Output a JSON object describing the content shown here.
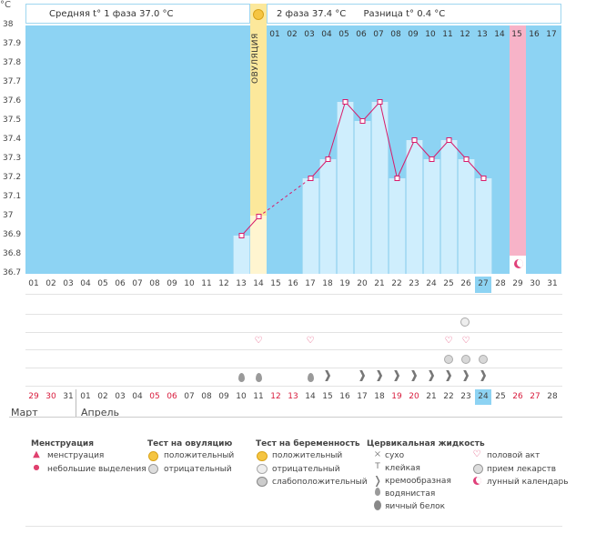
{
  "chart_data": {
    "type": "bar-line",
    "y_unit": "°C",
    "ylim": [
      36.7,
      38.0
    ],
    "y_ticks": [
      "38",
      "37.9",
      "37.8",
      "37.7",
      "37.6",
      "37.5",
      "37.4",
      "37.3",
      "37.2",
      "37.1",
      "37",
      "36.9",
      "36.8",
      "36.7"
    ],
    "header": {
      "phase1": "Средняя t° 1 фаза 37.0 °C",
      "phase2": "2 фаза 37.4 °C",
      "difference": "Разница t° 0.4 °C"
    },
    "ovulation_label": "ОВУЛЯЦИЯ",
    "cycle_days_top": [
      "01",
      "02",
      "03",
      "04",
      "05",
      "06",
      "07",
      "08",
      "09",
      "10",
      "11",
      "12",
      "13",
      "14",
      "15",
      "16",
      "17"
    ],
    "cycle_days": [
      "01",
      "02",
      "03",
      "04",
      "05",
      "06",
      "07",
      "08",
      "09",
      "10",
      "11",
      "12",
      "13",
      "14",
      "15",
      "16",
      "17",
      "18",
      "19",
      "20",
      "21",
      "22",
      "23",
      "24",
      "25",
      "26",
      "27",
      "28",
      "29",
      "30",
      "31"
    ],
    "calendar_dates": [
      "29",
      "30",
      "31",
      "01",
      "02",
      "03",
      "04",
      "05",
      "06",
      "07",
      "08",
      "09",
      "10",
      "11",
      "12",
      "13",
      "14",
      "15",
      "16",
      "17",
      "18",
      "19",
      "20",
      "21",
      "22",
      "23",
      "24",
      "25",
      "26",
      "27",
      "28"
    ],
    "weekend_dates": [
      "29",
      "30",
      "05",
      "06",
      "12",
      "13",
      "19",
      "20",
      "26",
      "27"
    ],
    "months": [
      "Март",
      "Апрель"
    ],
    "temperatures": [
      {
        "day": 13,
        "value": 36.9
      },
      {
        "day": 14,
        "value": 37.0
      },
      {
        "day": 17,
        "value": 37.2
      },
      {
        "day": 18,
        "value": 37.3
      },
      {
        "day": 19,
        "value": 37.6
      },
      {
        "day": 20,
        "value": 37.5
      },
      {
        "day": 21,
        "value": 37.6
      },
      {
        "day": 22,
        "value": 37.2
      },
      {
        "day": 23,
        "value": 37.4
      },
      {
        "day": 24,
        "value": 37.3
      },
      {
        "day": 25,
        "value": 37.4
      },
      {
        "day": 26,
        "value": 37.3
      },
      {
        "day": 27,
        "value": 37.2
      }
    ],
    "ovulation_day": 14,
    "menstruation_day": 29,
    "highlight_day": 27,
    "marks": {
      "intercourse_days": [
        14,
        17,
        25,
        26
      ],
      "pregnancy_negative_days": [
        26
      ],
      "medication_days": [
        25,
        26,
        27
      ],
      "watery_days": [
        13,
        14,
        17
      ],
      "creamy_days": [
        18,
        20,
        21,
        22,
        23,
        24,
        25,
        26,
        27
      ]
    }
  },
  "legend": {
    "menstruation": {
      "title": "Менструация",
      "items": [
        "менструация",
        "небольшие выделения"
      ]
    },
    "ovulation_test": {
      "title": "Тест на овуляцию",
      "items": [
        "положительный",
        "отрицательный"
      ]
    },
    "pregnancy_test": {
      "title": "Тест на беременность",
      "items": [
        "положительный",
        "отрицательный",
        "слабоположительный"
      ]
    },
    "cervical": {
      "title": "Цервикальная жидкость",
      "items": [
        "сухо",
        "клейкая",
        "кремообразная",
        "водянистая",
        "яичный белок"
      ]
    },
    "other": {
      "items": [
        "половой акт",
        "прием лекарств",
        "лунный календарь"
      ]
    }
  },
  "colors": {
    "plot": "#8dd3f3",
    "bar": "#cfeefd",
    "line": "#d81b6a",
    "ovulation": "#fce89b",
    "menstruation": "#f7b3c8",
    "weekend": "#d81b3c"
  }
}
